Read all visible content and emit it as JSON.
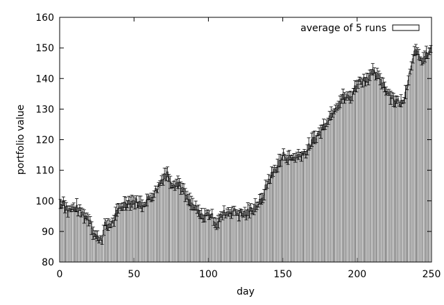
{
  "chart_data": {
    "type": "bar",
    "xlabel": "day",
    "ylabel": "portfolio value",
    "xlim": [
      0,
      250
    ],
    "ylim": [
      80,
      160
    ],
    "xticks": [
      0,
      50,
      100,
      150,
      200,
      250
    ],
    "yticks": [
      80,
      90,
      100,
      110,
      120,
      130,
      140,
      150,
      160
    ],
    "grid": false,
    "legend_position": "top-right",
    "series": [
      {
        "name": "average of 5 runs",
        "error_bars": true,
        "keypoints_day": [
          0,
          2,
          5,
          10,
          15,
          20,
          22,
          25,
          28,
          30,
          35,
          40,
          45,
          50,
          55,
          60,
          65,
          70,
          72,
          75,
          80,
          85,
          90,
          95,
          100,
          105,
          110,
          115,
          120,
          125,
          130,
          135,
          140,
          145,
          150,
          155,
          160,
          165,
          170,
          175,
          180,
          185,
          190,
          195,
          200,
          205,
          210,
          215,
          220,
          225,
          230,
          235,
          238,
          242,
          245,
          249
        ],
        "keypoints_value": [
          99,
          100,
          97,
          98,
          96,
          94,
          90,
          88,
          88,
          92,
          93,
          98,
          100,
          100,
          99,
          101,
          104,
          109,
          109,
          106,
          106,
          101,
          98,
          95,
          96,
          93,
          96,
          97,
          96,
          96,
          98,
          100,
          107,
          111,
          115,
          114,
          115,
          116,
          120,
          123,
          127,
          131,
          134,
          134,
          139,
          140,
          142,
          140,
          136,
          133,
          132,
          142,
          150,
          146,
          147,
          149
        ]
      }
    ]
  }
}
